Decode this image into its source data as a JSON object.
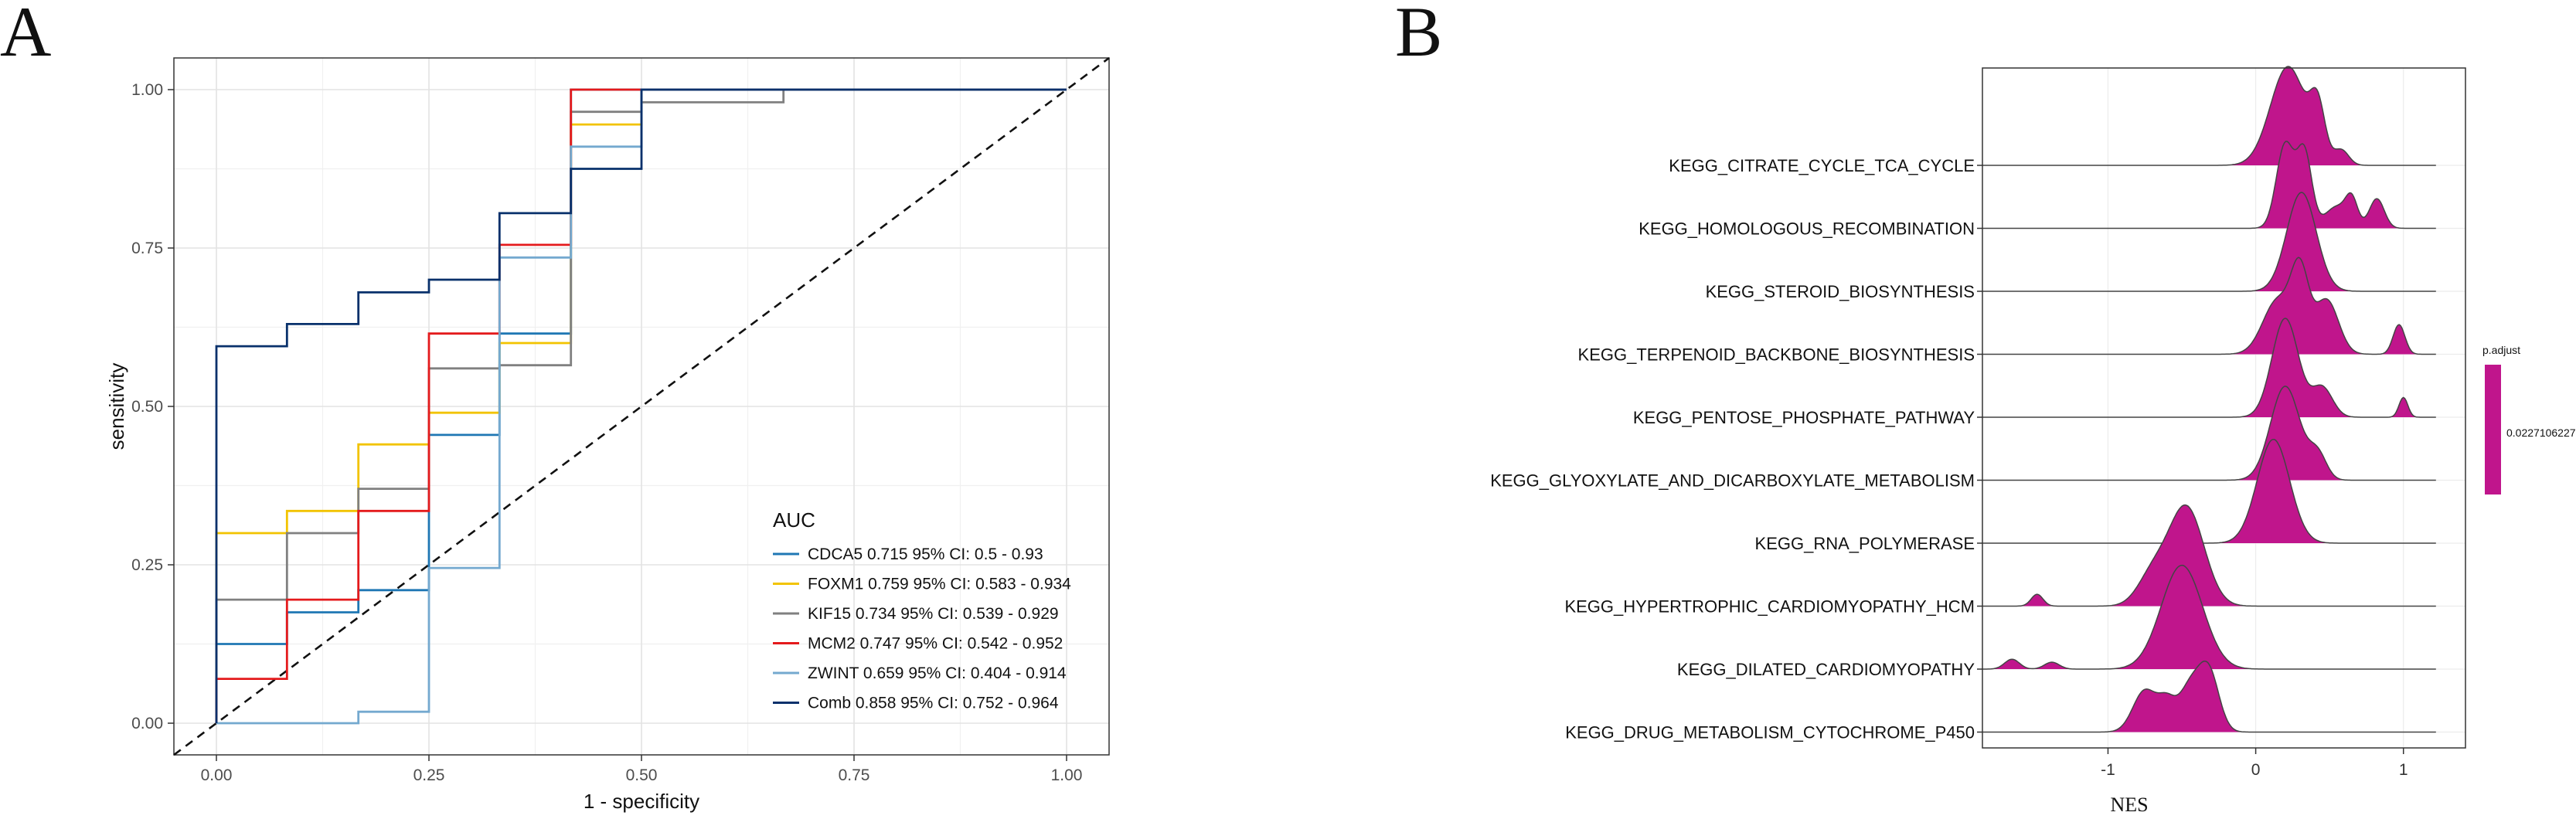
{
  "panels": {
    "a_label": "A",
    "b_label": "B"
  },
  "chart_data": [
    {
      "type": "line",
      "xlabel": "1 - specificity",
      "ylabel": "sensitivity",
      "xlim": [
        -0.05,
        1.05
      ],
      "ylim": [
        -0.05,
        1.05
      ],
      "x_ticks": [
        0,
        0.25,
        0.5,
        0.75,
        1
      ],
      "x_tick_labels": [
        "0.00",
        "0.25",
        "0.50",
        "0.75",
        "1.00"
      ],
      "y_ticks": [
        0,
        0.25,
        0.5,
        0.75,
        1
      ],
      "y_tick_labels": [
        "0.00",
        "0.25",
        "0.50",
        "0.75",
        "1.00"
      ],
      "grid": true,
      "legend": {
        "title": "AUC",
        "position": "bottom-right"
      },
      "reference_line": {
        "style": "dashed",
        "from": [
          0,
          0
        ],
        "to": [
          1,
          1
        ]
      },
      "series": [
        {
          "name": "CDCA5 0.715 95% CI: 0.5 - 0.93",
          "color": "#1f77b4",
          "points": [
            [
              0,
              0
            ],
            [
              0,
              0.125
            ],
            [
              0.083,
              0.125
            ],
            [
              0.083,
              0.175
            ],
            [
              0.167,
              0.175
            ],
            [
              0.167,
              0.21
            ],
            [
              0.25,
              0.21
            ],
            [
              0.25,
              0.455
            ],
            [
              0.333,
              0.455
            ],
            [
              0.333,
              0.615
            ],
            [
              0.417,
              0.615
            ],
            [
              0.417,
              1
            ],
            [
              1,
              1
            ]
          ]
        },
        {
          "name": "FOXM1 0.759 95% CI: 0.583 - 0.934",
          "color": "#f2c300",
          "points": [
            [
              0,
              0
            ],
            [
              0,
              0.3
            ],
            [
              0.083,
              0.3
            ],
            [
              0.083,
              0.335
            ],
            [
              0.167,
              0.335
            ],
            [
              0.167,
              0.44
            ],
            [
              0.25,
              0.44
            ],
            [
              0.25,
              0.49
            ],
            [
              0.333,
              0.49
            ],
            [
              0.333,
              0.6
            ],
            [
              0.417,
              0.6
            ],
            [
              0.417,
              0.945
            ],
            [
              0.5,
              0.945
            ],
            [
              0.5,
              1
            ],
            [
              1,
              1
            ]
          ]
        },
        {
          "name": "KIF15 0.734 95% CI: 0.539 - 0.929",
          "color": "#808080",
          "points": [
            [
              0,
              0
            ],
            [
              0,
              0.195
            ],
            [
              0.083,
              0.195
            ],
            [
              0.083,
              0.3
            ],
            [
              0.167,
              0.3
            ],
            [
              0.167,
              0.37
            ],
            [
              0.25,
              0.37
            ],
            [
              0.25,
              0.56
            ],
            [
              0.333,
              0.56
            ],
            [
              0.333,
              0.565
            ],
            [
              0.417,
              0.565
            ],
            [
              0.417,
              0.965
            ],
            [
              0.5,
              0.965
            ],
            [
              0.5,
              0.98
            ],
            [
              0.667,
              0.98
            ],
            [
              0.667,
              1
            ],
            [
              1,
              1
            ]
          ]
        },
        {
          "name": "MCM2 0.747 95% CI: 0.542 - 0.952",
          "color": "#e41a1c",
          "points": [
            [
              0,
              0
            ],
            [
              0,
              0.07
            ],
            [
              0.083,
              0.07
            ],
            [
              0.083,
              0.195
            ],
            [
              0.167,
              0.195
            ],
            [
              0.167,
              0.335
            ],
            [
              0.25,
              0.335
            ],
            [
              0.25,
              0.615
            ],
            [
              0.333,
              0.615
            ],
            [
              0.333,
              0.755
            ],
            [
              0.417,
              0.755
            ],
            [
              0.417,
              1
            ],
            [
              1,
              1
            ]
          ]
        },
        {
          "name": "ZWINT 0.659 95% CI: 0.404 - 0.914",
          "color": "#74a9cf",
          "points": [
            [
              0,
              0
            ],
            [
              0.167,
              0
            ],
            [
              0.167,
              0.018
            ],
            [
              0.25,
              0.018
            ],
            [
              0.25,
              0.245
            ],
            [
              0.333,
              0.245
            ],
            [
              0.333,
              0.735
            ],
            [
              0.417,
              0.735
            ],
            [
              0.417,
              0.91
            ],
            [
              0.5,
              0.91
            ],
            [
              0.5,
              1
            ],
            [
              1,
              1
            ]
          ]
        },
        {
          "name": "Comb 0.858 95% CI: 0.752 - 0.964",
          "color": "#08306b",
          "points": [
            [
              0,
              0
            ],
            [
              0,
              0.595
            ],
            [
              0.083,
              0.595
            ],
            [
              0.083,
              0.63
            ],
            [
              0.167,
              0.63
            ],
            [
              0.167,
              0.68
            ],
            [
              0.25,
              0.68
            ],
            [
              0.25,
              0.7
            ],
            [
              0.333,
              0.7
            ],
            [
              0.333,
              0.805
            ],
            [
              0.417,
              0.805
            ],
            [
              0.417,
              0.875
            ],
            [
              0.5,
              0.875
            ],
            [
              0.5,
              1
            ],
            [
              1,
              1
            ]
          ]
        }
      ]
    },
    {
      "type": "area",
      "subtype": "ridgeline",
      "xlabel": "NES",
      "xlim": [
        -1.85,
        1.42
      ],
      "x_ticks": [
        -1,
        0,
        1
      ],
      "x_tick_labels": [
        "-1",
        "0",
        "1"
      ],
      "fill_color": "#c0158c",
      "line_range": [
        -1.85,
        1.22
      ],
      "colorbar": {
        "title": "p.adjust",
        "value_label": "0.02271062271",
        "color": "#c0158c"
      },
      "categories": [
        "KEGG_CITRATE_CYCLE_TCA_CYCLE",
        "KEGG_HOMOLOGOUS_RECOMBINATION",
        "KEGG_STEROID_BIOSYNTHESIS",
        "KEGG_TERPENOID_BACKBONE_BIOSYNTHESIS",
        "KEGG_PENTOSE_PHOSPHATE_PATHWAY",
        "KEGG_GLYOXYLATE_AND_DICARBOXYLATE_METABOLISM",
        "KEGG_RNA_POLYMERASE",
        "KEGG_HYPERTROPHIC_CARDIOMYOPATHY_HCM",
        "KEGG_DILATED_CARDIOMYOPATHY",
        "KEGG_DRUG_METABOLISM_CYTOCHROME_P450"
      ],
      "densities": [
        [
          [
            0.22,
            0.12,
            1.0
          ],
          [
            0.42,
            0.05,
            0.5
          ],
          [
            0.58,
            0.05,
            0.15
          ]
        ],
        [
          [
            0.2,
            0.06,
            0.85
          ],
          [
            0.33,
            0.05,
            0.75
          ],
          [
            0.55,
            0.08,
            0.22
          ],
          [
            0.65,
            0.04,
            0.25
          ],
          [
            0.82,
            0.05,
            0.3
          ]
        ],
        [
          [
            0.31,
            0.1,
            1.0
          ]
        ],
        [
          [
            0.15,
            0.1,
            0.55
          ],
          [
            0.3,
            0.06,
            0.75
          ],
          [
            0.48,
            0.08,
            0.55
          ],
          [
            0.97,
            0.04,
            0.3
          ]
        ],
        [
          [
            0.2,
            0.09,
            1.0
          ],
          [
            0.45,
            0.07,
            0.3
          ],
          [
            1.0,
            0.03,
            0.2
          ]
        ],
        [
          [
            0.2,
            0.1,
            0.95
          ],
          [
            0.42,
            0.06,
            0.25
          ]
        ],
        [
          [
            0.12,
            0.11,
            1.05
          ]
        ],
        [
          [
            -1.48,
            0.04,
            0.12
          ],
          [
            -0.7,
            0.1,
            0.3
          ],
          [
            -0.47,
            0.12,
            1.0
          ]
        ],
        [
          [
            -1.65,
            0.05,
            0.1
          ],
          [
            -1.38,
            0.05,
            0.07
          ],
          [
            -0.5,
            0.14,
            1.05
          ]
        ],
        [
          [
            -0.75,
            0.08,
            0.42
          ],
          [
            -0.6,
            0.06,
            0.28
          ],
          [
            -0.45,
            0.07,
            0.42
          ],
          [
            -0.32,
            0.07,
            0.62
          ]
        ]
      ]
    }
  ]
}
